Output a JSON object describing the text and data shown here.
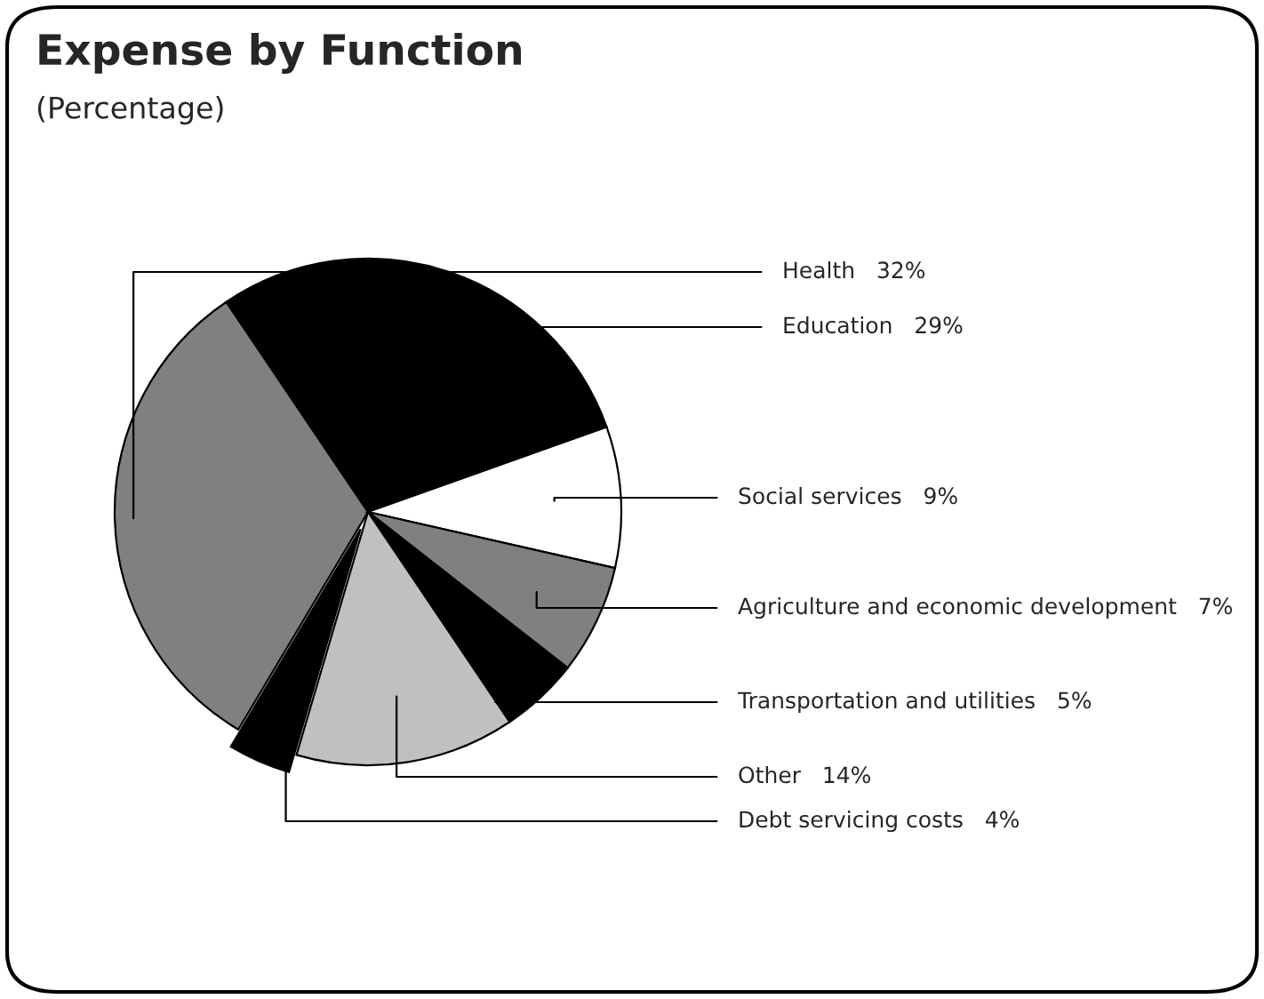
{
  "chart_data": {
    "type": "pie",
    "title": "Expense by Function",
    "subtitle": "(Percentage)",
    "categories": [
      "Health",
      "Education",
      "Social services",
      "Agriculture and economic development",
      "Transportation and utilities",
      "Other",
      "Debt servicing costs"
    ],
    "values": [
      32,
      29,
      9,
      7,
      5,
      14,
      4
    ],
    "value_labels": [
      "32%",
      "29%",
      "9%",
      "7%",
      "5%",
      "14%",
      "4%"
    ],
    "colors": [
      "#808080",
      "#000000",
      "#ffffff",
      "#808080",
      "#000000",
      "#c0c0c0",
      "#000000"
    ]
  }
}
